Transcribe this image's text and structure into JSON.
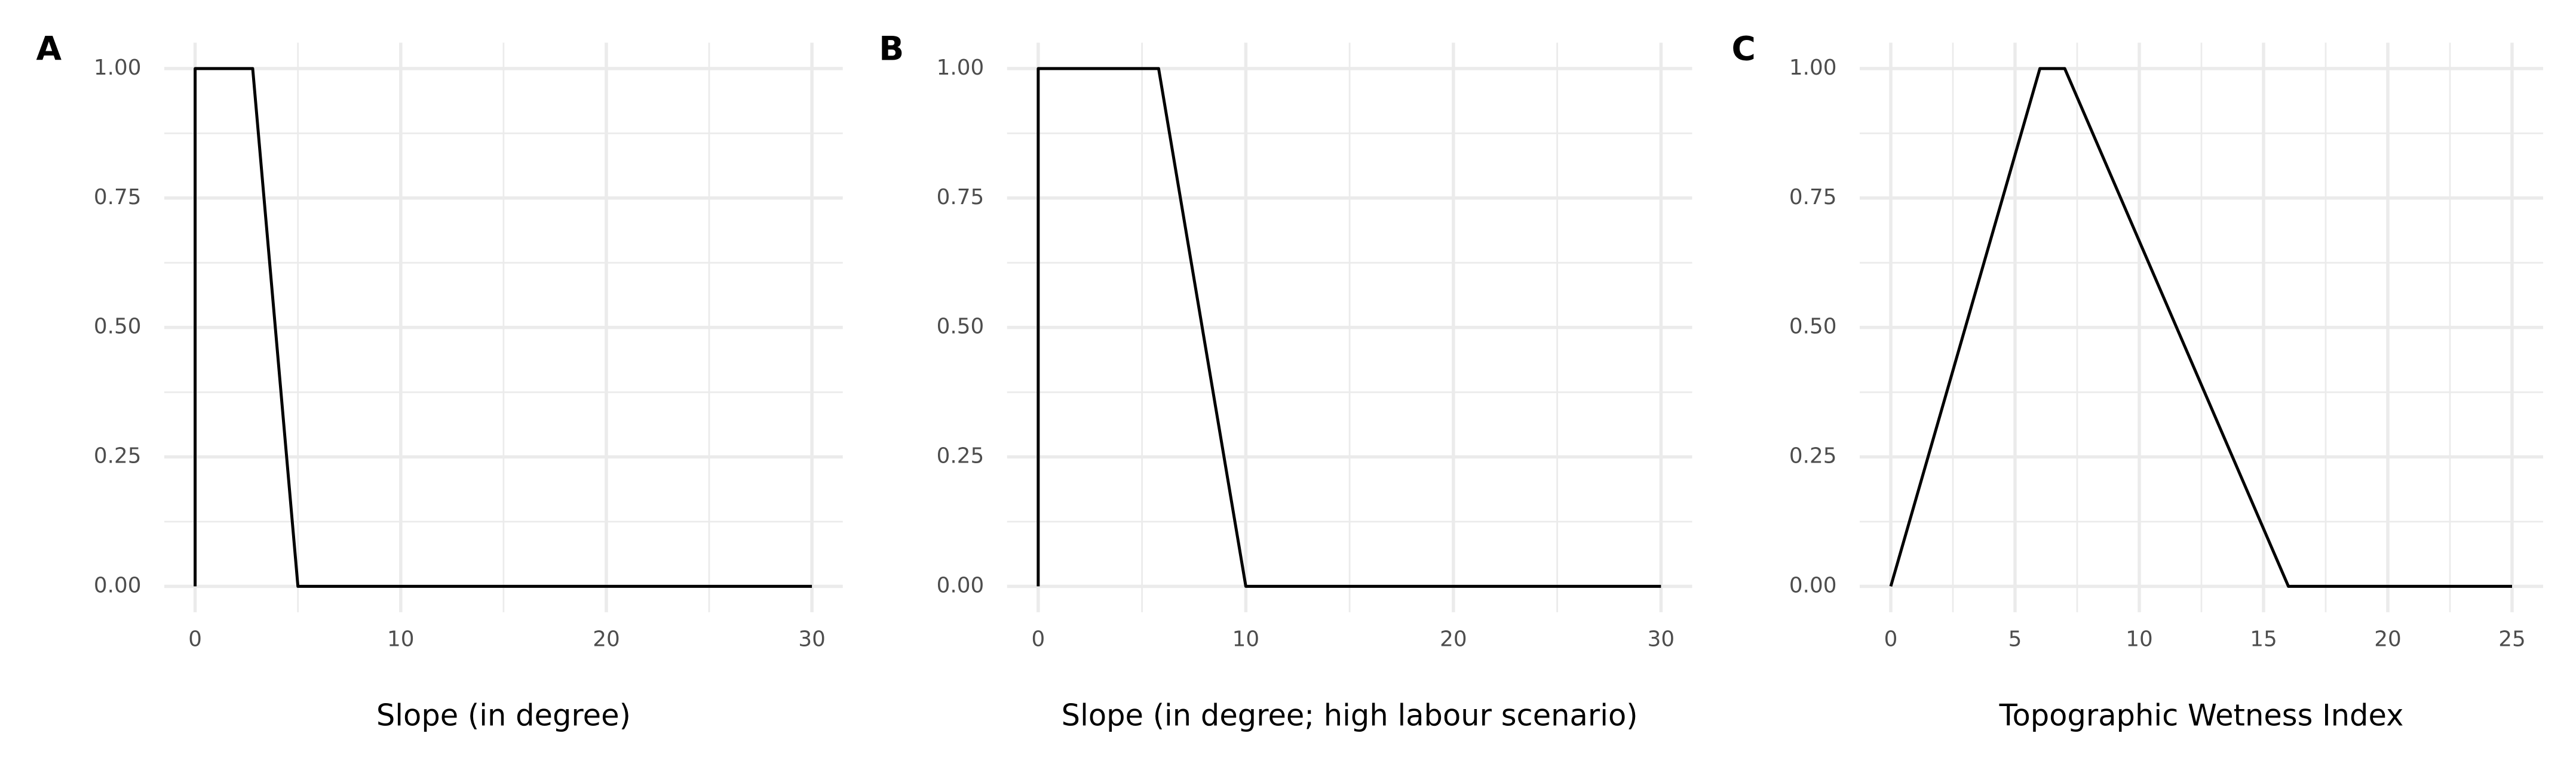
{
  "chart_data": [
    {
      "type": "line",
      "tag": "A",
      "x_label": "Slope (in degree)",
      "x": [
        0,
        0,
        2.8,
        5,
        30
      ],
      "series": [
        {
          "color": "#000000",
          "values": [
            0,
            1,
            1,
            0,
            0
          ]
        }
      ],
      "xlim": [
        -1.5,
        31.5
      ],
      "xticks": [
        0,
        10,
        20,
        30
      ],
      "x_minor_grid": [
        5,
        15,
        25
      ],
      "ylim": [
        -0.05,
        1.05
      ],
      "yticks": [
        {
          "value": 0,
          "label": "0.00"
        },
        {
          "value": 0.25,
          "label": "0.25"
        },
        {
          "value": 0.5,
          "label": "0.50"
        },
        {
          "value": 0.75,
          "label": "0.75"
        },
        {
          "value": 1,
          "label": "1.00"
        }
      ],
      "y_minor_grid": [
        0.125,
        0.375,
        0.625,
        0.875
      ],
      "grid": true
    },
    {
      "type": "line",
      "tag": "B",
      "x_label": "Slope (in degree; high labour scenario)",
      "x": [
        0,
        0,
        5.8,
        10,
        30
      ],
      "series": [
        {
          "color": "#000000",
          "values": [
            0,
            1,
            1,
            0,
            0
          ]
        }
      ],
      "xlim": [
        -1.5,
        31.5
      ],
      "xticks": [
        0,
        10,
        20,
        30
      ],
      "x_minor_grid": [
        5,
        15,
        25
      ],
      "ylim": [
        -0.05,
        1.05
      ],
      "yticks": [
        {
          "value": 0,
          "label": "0.00"
        },
        {
          "value": 0.25,
          "label": "0.25"
        },
        {
          "value": 0.5,
          "label": "0.50"
        },
        {
          "value": 0.75,
          "label": "0.75"
        },
        {
          "value": 1,
          "label": "1.00"
        }
      ],
      "y_minor_grid": [
        0.125,
        0.375,
        0.625,
        0.875
      ],
      "grid": true
    },
    {
      "type": "line",
      "tag": "C",
      "x_label": "Topographic Wetness Index",
      "x": [
        0,
        6,
        7,
        16,
        25
      ],
      "series": [
        {
          "color": "#000000",
          "values": [
            0,
            1,
            1,
            0,
            0
          ]
        }
      ],
      "xlim": [
        -1.25,
        26.25
      ],
      "xticks": [
        0,
        5,
        10,
        15,
        20,
        25
      ],
      "x_minor_grid": [
        2.5,
        7.5,
        12.5,
        17.5,
        22.5
      ],
      "ylim": [
        -0.05,
        1.05
      ],
      "yticks": [
        {
          "value": 0,
          "label": "0.00"
        },
        {
          "value": 0.25,
          "label": "0.25"
        },
        {
          "value": 0.5,
          "label": "0.50"
        },
        {
          "value": 0.75,
          "label": "0.75"
        },
        {
          "value": 1,
          "label": "1.00"
        }
      ],
      "y_minor_grid": [
        0.125,
        0.375,
        0.625,
        0.875
      ],
      "grid": true
    }
  ]
}
